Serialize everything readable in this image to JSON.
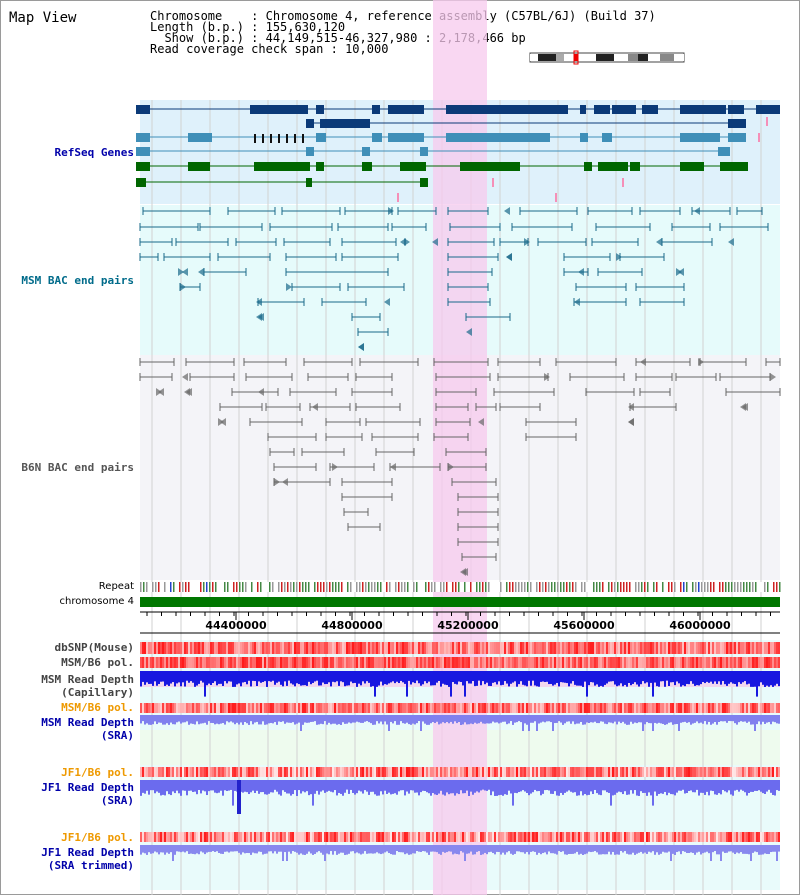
{
  "app": {
    "title": "Map View"
  },
  "header": {
    "rows": [
      {
        "key": "Chromosome    ",
        "value": "Chromosome 4, reference assembly (C57BL/6J) (Build 37)"
      },
      {
        "key": "Length (b.p.) ",
        "value": "155,630,120"
      },
      {
        "key": "  Show (b.p.) ",
        "value": "44,149,515-46,327,980 : 2,178,466 bp"
      },
      {
        "key": "Read coverage check span ",
        "value": "10,000"
      }
    ]
  },
  "tracks": {
    "refseq": "RefSeq Genes",
    "msm_bac": "MSM BAC end pairs",
    "b6n_bac": "B6N BAC end pairs",
    "repeat": "Repeat",
    "chromosome": "chromosome 4",
    "dbsnp": "dbSNP(Mouse)",
    "msm_b6_pol": "MSM/B6 pol.",
    "msm_depth_cap_1": "MSM Read Depth",
    "msm_depth_cap_2": "(Capillary)",
    "msm_b6_pol_2": "MSM/B6 pol.",
    "msm_depth_sra_1": "MSM Read Depth",
    "msm_depth_sra_2": "(SRA)",
    "jf1_b6_pol": "JF1/B6 pol.",
    "jf1_depth_sra_1": "JF1 Read Depth",
    "jf1_depth_sra_2": "(SRA)",
    "jf1_b6_pol_2": "JF1/B6 pol.",
    "jf1_depth_trim_1": "JF1 Read Depth",
    "jf1_depth_trim_2": "(SRA trimmed)"
  },
  "axis": {
    "ticks": [
      "44400000",
      "44800000",
      "45200000",
      "45600000",
      "46000000"
    ]
  },
  "colors": {
    "refseq_dark": "#0b3a78",
    "refseq_mid": "#3f8fb8",
    "refseq_green": "#006600",
    "refseq_bg": "#dff1fb",
    "bac_msm": "#1a6a8a",
    "bac_b6n": "#666666",
    "highlight": "#f7c9ee",
    "label_blue": "#0000aa",
    "label_teal": "#006b8a",
    "label_orange": "#ee9900",
    "label_gray": "#444444",
    "chrom_green": "#007700"
  }
}
